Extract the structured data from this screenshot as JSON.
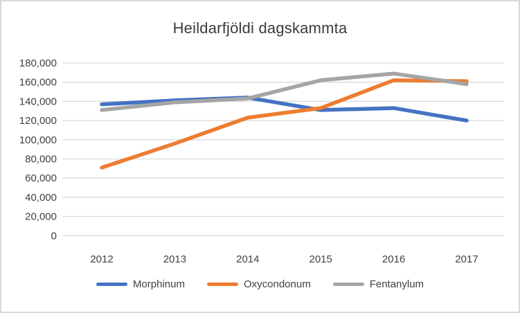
{
  "chart_data": {
    "type": "line",
    "title": "Heildarfjöldi dagskammta",
    "categories": [
      "2012",
      "2013",
      "2014",
      "2015",
      "2016",
      "2017"
    ],
    "series": [
      {
        "name": "Morphinum",
        "color": "#4472C4",
        "values": [
          137000,
          141000,
          144000,
          131000,
          133000,
          120000
        ]
      },
      {
        "name": "Oxycondonum",
        "color": "#ED7D31",
        "values": [
          71000,
          96000,
          123000,
          133000,
          162000,
          161000
        ]
      },
      {
        "name": "Fentanylum",
        "color": "#A5A5A5",
        "values": [
          131000,
          139000,
          143000,
          162000,
          169000,
          158000
        ]
      }
    ],
    "xlabel": "",
    "ylabel": "",
    "ylim": [
      0,
      180000
    ],
    "y_tick_step": 20000,
    "y_tick_labels": [
      "0",
      "20,000",
      "40,000",
      "60,000",
      "80,000",
      "100,000",
      "120,000",
      "140,000",
      "160,000",
      "180,000"
    ],
    "grid": true,
    "gridline_color": "#D9D9D9",
    "legend_position": "bottom",
    "legend_entries": [
      "Morphinum",
      "Oxycondonum",
      "Fentanylum"
    ]
  }
}
